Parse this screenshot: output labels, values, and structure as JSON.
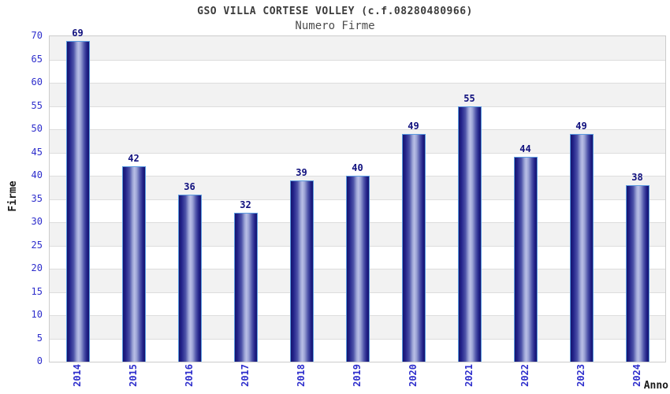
{
  "chart_data": {
    "type": "bar",
    "title": "GSO VILLA CORTESE VOLLEY (c.f.08280480966)",
    "subtitle": "Numero Firme",
    "xlabel": "Anno",
    "ylabel": "Firme",
    "categories": [
      "2014",
      "2015",
      "2016",
      "2017",
      "2018",
      "2019",
      "2020",
      "2021",
      "2022",
      "2023",
      "2024"
    ],
    "values": [
      69,
      42,
      36,
      32,
      39,
      40,
      49,
      55,
      44,
      49,
      38
    ],
    "ylim": [
      0,
      70
    ],
    "ytick_step": 5,
    "legend": "none",
    "grid": "horizontal-bands-alternating",
    "value_labels_shown": true,
    "colors": {
      "bar_dark": "#14146e",
      "bar_mid": "#4c52a8",
      "bar_highlight": "#b9bfe6",
      "bar_border": "#5b9be0",
      "tick_label": "#2e2ecc",
      "value_label": "#10107e",
      "band": "#f2f2f2",
      "gridline": "#dddddd",
      "plot_border": "#cccccc",
      "title": "#3c3c3c",
      "subtitle": "#4c4c4c",
      "axis_label": "#1a1a1a"
    }
  }
}
